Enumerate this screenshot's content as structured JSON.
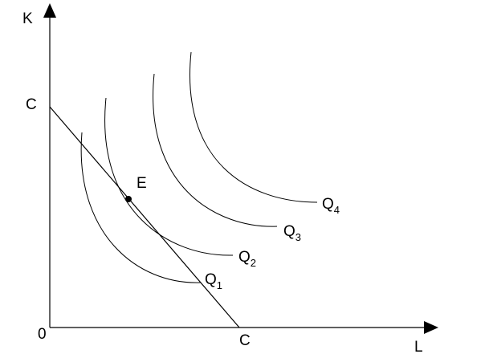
{
  "axes": {
    "y_label": "K",
    "x_label": "L",
    "origin": "0"
  },
  "budget_line": {
    "y_intercept_label": "C",
    "x_intercept_label": "C"
  },
  "point": {
    "label": "E"
  },
  "isoquants": [
    {
      "letter": "Q",
      "subscript": "1"
    },
    {
      "letter": "Q",
      "subscript": "2"
    },
    {
      "letter": "Q",
      "subscript": "3"
    },
    {
      "letter": "Q",
      "subscript": "4"
    }
  ]
}
